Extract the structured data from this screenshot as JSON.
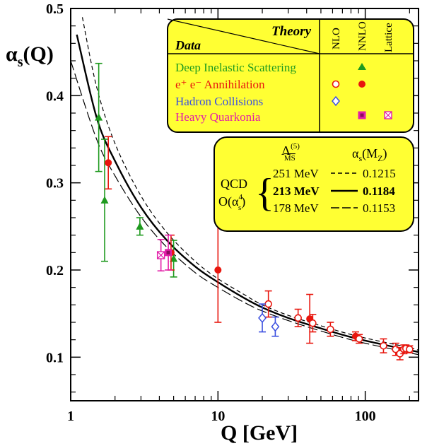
{
  "chart_data": {
    "type": "scatter",
    "title": "",
    "xlabel": "Q [GeV]",
    "ylabel_main": "α",
    "ylabel_sub": "s",
    "ylabel_tail": "(Q)",
    "x_scale": "log",
    "xlim": [
      1,
      230
    ],
    "ylim": [
      0.05,
      0.5
    ],
    "x_ticks": [
      1,
      10,
      100
    ],
    "x_tick_labels": [
      "1",
      "10",
      "100"
    ],
    "y_ticks": [
      0.1,
      0.2,
      0.3,
      0.4,
      0.5
    ],
    "y_tick_labels": [
      "0.1",
      "0.2",
      "0.3",
      "0.4",
      "0.5"
    ],
    "curves": [
      {
        "name": "251 MeV",
        "alpha_mz": "0.1215",
        "style": "dashed",
        "x": [
          1.2,
          1.5,
          2,
          3,
          4.5,
          7,
          10,
          15,
          20,
          30,
          50,
          80,
          120,
          200,
          230
        ],
        "y": [
          0.49,
          0.41,
          0.345,
          0.285,
          0.243,
          0.21,
          0.19,
          0.172,
          0.16,
          0.148,
          0.136,
          0.126,
          0.119,
          0.111,
          0.108
        ]
      },
      {
        "name": "213 MeV",
        "alpha_mz": "0.1184",
        "style": "solid",
        "x": [
          1.1,
          1.5,
          2,
          3,
          4.5,
          7,
          10,
          15,
          20,
          30,
          50,
          80,
          120,
          200,
          230
        ],
        "y": [
          0.47,
          0.375,
          0.325,
          0.272,
          0.234,
          0.204,
          0.186,
          0.168,
          0.157,
          0.145,
          0.133,
          0.123,
          0.116,
          0.108,
          0.106
        ]
      },
      {
        "name": "178 MeV",
        "alpha_mz": "0.1153",
        "style": "long-dash",
        "x": [
          1,
          1.5,
          2,
          3,
          4.5,
          7,
          10,
          15,
          20,
          30,
          50,
          80,
          120,
          200,
          230
        ],
        "y": [
          0.44,
          0.35,
          0.308,
          0.261,
          0.226,
          0.197,
          0.18,
          0.163,
          0.153,
          0.142,
          0.13,
          0.12,
          0.113,
          0.105,
          0.103
        ]
      }
    ],
    "series": [
      {
        "name": "Deep Inelastic Scattering",
        "color": "#1f9a1f",
        "marker": "triangle",
        "points": [
          {
            "x": 1.55,
            "y": 0.375,
            "err": 0.062
          },
          {
            "x": 1.7,
            "y": 0.28,
            "err": 0.07
          },
          {
            "x": 2.95,
            "y": 0.25,
            "err": 0.01
          },
          {
            "x": 5.0,
            "y": 0.213,
            "err": 0.021
          }
        ]
      },
      {
        "name": "e+e- Annihilation",
        "color": "#e8160e",
        "marker": "circle-filled",
        "points": [
          {
            "x": 1.8,
            "y": 0.323,
            "err": 0.03
          },
          {
            "x": 4.8,
            "y": 0.22,
            "err": 0.02
          },
          {
            "x": 10.0,
            "y": 0.2,
            "err": 0.06
          },
          {
            "x": 42.0,
            "y": 0.144,
            "err": 0.028
          },
          {
            "x": 86.0,
            "y": 0.124,
            "err": 0.005
          }
        ]
      },
      {
        "name": "e+e- Annihilation (NLO)",
        "color": "#e8160e",
        "marker": "circle-open",
        "points": [
          {
            "x": 22.0,
            "y": 0.161,
            "err": 0.015
          },
          {
            "x": 35.0,
            "y": 0.145,
            "err": 0.01
          },
          {
            "x": 44.0,
            "y": 0.139,
            "err": 0.01
          },
          {
            "x": 58.0,
            "y": 0.132,
            "err": 0.008
          },
          {
            "x": 91.0,
            "y": 0.121,
            "err": 0.005
          },
          {
            "x": 133.0,
            "y": 0.113,
            "err": 0.008
          },
          {
            "x": 161.0,
            "y": 0.109,
            "err": 0.007
          },
          {
            "x": 172.0,
            "y": 0.104,
            "err": 0.007
          },
          {
            "x": 183.0,
            "y": 0.109,
            "err": 0.005
          },
          {
            "x": 189.0,
            "y": 0.11,
            "err": 0.004
          },
          {
            "x": 200.0,
            "y": 0.109,
            "err": 0.004
          }
        ]
      },
      {
        "name": "Hadron Collisions",
        "color": "#3c50e0",
        "marker": "diamond-open",
        "points": [
          {
            "x": 20.0,
            "y": 0.145,
            "err": 0.016
          },
          {
            "x": 24.5,
            "y": 0.135,
            "err": 0.011
          }
        ]
      },
      {
        "name": "Heavy Quarkonia",
        "color": "#e21ea8",
        "marker": "square-x",
        "points": [
          {
            "x": 4.1,
            "y": 0.217,
            "err": 0.018
          }
        ]
      },
      {
        "name": "Heavy Quarkonia (NNLO)",
        "color": "#e21ea8",
        "marker": "square-filled",
        "points": [
          {
            "x": 4.6,
            "y": 0.22,
            "err": 0.02
          }
        ]
      }
    ]
  },
  "legend": {
    "theory_label": "Theory",
    "data_label": "Data",
    "columns": [
      "NLO",
      "NNLO",
      "Lattice"
    ],
    "rows": [
      {
        "label": "Deep Inelastic Scattering",
        "color": "#1f9a1f"
      },
      {
        "label": "e⁺ e⁻ Annihilation",
        "color": "#e8160e"
      },
      {
        "label": "Hadron Collisions",
        "color": "#3c50e0"
      },
      {
        "label": "Heavy Quarkonia",
        "color": "#e21ea8"
      }
    ],
    "background": "#ffff33"
  },
  "qcd_box": {
    "lambda_main": "Λ",
    "lambda_sup": "(5)",
    "lambda_sub": "MS",
    "alpha_main": "α",
    "alpha_sub": "s",
    "alpha_tail": "(M",
    "alpha_tail_sub": "Z",
    "alpha_close": ")",
    "label_qcd": "QCD",
    "label_order": "O(α",
    "label_order_sub": "s",
    "label_order_sup": "4",
    "label_order_close": ")",
    "rows": [
      {
        "lambda": "251 MeV",
        "alpha": "0.1215"
      },
      {
        "lambda": "213 MeV",
        "alpha": "0.1184"
      },
      {
        "lambda": "178 MeV",
        "alpha": "0.1153"
      }
    ]
  },
  "colors": {
    "panel_fill": "#ffff33",
    "axis": "#000000"
  }
}
